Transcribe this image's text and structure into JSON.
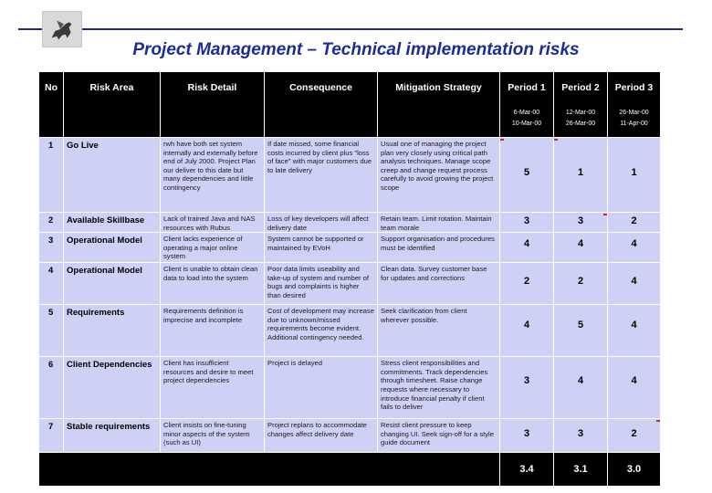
{
  "header": {
    "title": "Project Management – Technical implementation risks",
    "logo_icon": "pegasus-logo-icon",
    "brand_color": "#1d2b99"
  },
  "table": {
    "columns": [
      "No",
      "Risk Area",
      "Risk Detail",
      "Consequence",
      "Mitigation Strategy",
      "Period 1",
      "Period 2",
      "Period 3"
    ],
    "period_dates": [
      [
        "6-Mar-00",
        "10-Mar-00"
      ],
      [
        "12-Mar-00",
        "26-Mar-00"
      ],
      [
        "26-Mar-00",
        "11-Apr-00"
      ]
    ],
    "rows": [
      {
        "no": "1",
        "area": "Go Live",
        "detail": "rwh have both set system internally and externally before end of July 2000. Project Plan our deliver to this date but many dependencies and little contingency",
        "consequence": "If date missed, some financial costs incurred by client plus \"loss of face\" with major customers due to late delivery",
        "mitigation": "Usual one of managing the project plan very closely using critical path analysis techniques. Manage scope creep and change request process carefully to avoid growing the project scope",
        "scores": [
          "5",
          "1",
          "1"
        ]
      },
      {
        "no": "2",
        "area": "Available Skillbase",
        "detail": "Lack of trained Java and NAS resources with Rubus",
        "consequence": "Loss of key developers will affect delivery date",
        "mitigation": "Retain team. Limit rotation. Maintain team morale",
        "scores": [
          "3",
          "3",
          "2"
        ]
      },
      {
        "no": "3",
        "area": "Operational Model",
        "detail": "Client lacks experience of operating a major online system",
        "consequence": "System cannot be supported or maintained by EVoH",
        "mitigation": "Support organisation and procedures must be identified",
        "scores": [
          "4",
          "4",
          "4"
        ]
      },
      {
        "no": "4",
        "area": "Operational Model",
        "detail": "Client is unable to obtain clean data to load into the system",
        "consequence": "Poor data limits useability and take-up of system and number of bugs and complaints is higher than desired",
        "mitigation": "Clean data. Survey customer base for updates and corrections",
        "scores": [
          "2",
          "2",
          "4"
        ]
      },
      {
        "no": "5",
        "area": "Requirements",
        "detail": "Requirements definition is imprecise and incomplete",
        "consequence": "Cost of development may increase due to unknown/missed requirements become evident. Additional contingency needed.",
        "mitigation": "Seek clarification from client wherever possible.",
        "scores": [
          "4",
          "5",
          "4"
        ]
      },
      {
        "no": "6",
        "area": "Client Dependencies",
        "detail": "Client has insufficient resources and desire to meet project dependencies",
        "consequence": "Project is delayed",
        "mitigation": "Stress client responsibilities and commitments. Track dependencies through timesheet. Raise change requests where necessary to introduce financial penalty if client fails to deliver",
        "scores": [
          "3",
          "4",
          "4"
        ]
      },
      {
        "no": "7",
        "area": "Stable requirements",
        "detail": "Client insists on fine-tuning minor aspects of the system (such as UI)",
        "consequence": "Project replans to accommodate changes affect delivery date",
        "mitigation": "Resist client pressure to keep changing UI. Seek sign-off for a style guide document",
        "scores": [
          "3",
          "3",
          "2"
        ]
      }
    ],
    "totals": [
      "3.4",
      "3.1",
      "3.0"
    ],
    "marker_color": "#d8203a"
  }
}
